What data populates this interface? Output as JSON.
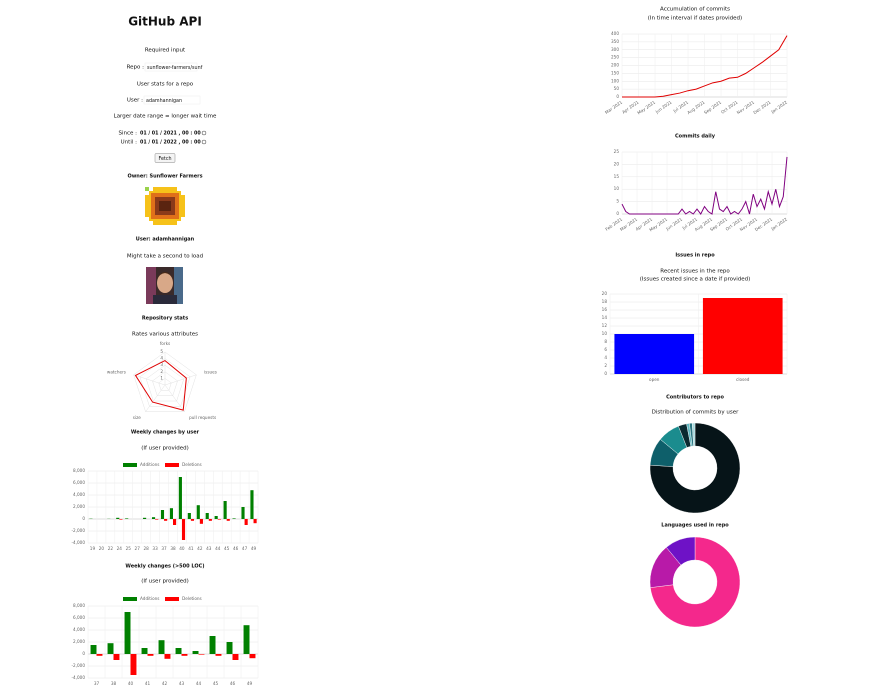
{
  "header": {
    "title": "GitHub API"
  },
  "form": {
    "required": "Required input",
    "repo_label": "Repo :",
    "repo_value": "sunflower-farmers/sunf",
    "user_stats": "User stats for a repo",
    "user_label": "User :",
    "user_value": "adamhannigan",
    "date_note": "Larger date range = longer wait time",
    "since_label": "Since :",
    "since_value": "01 / 01 / 2021 , 00 : 00",
    "until_label": "Until :",
    "until_value": "01 / 01 / 2022 , 00 : 00",
    "button": "Fetch"
  },
  "owner": {
    "heading": "Owner: Sunflower Farmers"
  },
  "user": {
    "heading": "User: adamhannigan",
    "note": "Might take a second to load"
  },
  "chart_data": [
    {
      "type": "radar",
      "title": "Repository stats",
      "subtitle": "Rates various attributes",
      "categories": [
        "forks",
        "issues",
        "pull requests",
        "size",
        "watchers"
      ],
      "values": [
        3.7,
        3.4,
        4.7,
        3.2,
        4.7
      ],
      "color": "#e00000",
      "ylim": [
        0,
        5
      ],
      "yticks": [
        1,
        2,
        3,
        4,
        5
      ]
    },
    {
      "type": "bar",
      "title": "Weekly changes by user",
      "subtitle": "(If user provided)",
      "categories": [
        "19",
        "20",
        "22",
        "24",
        "25",
        "27",
        "28",
        "33",
        "37",
        "38",
        "40",
        "41",
        "42",
        "43",
        "44",
        "45",
        "46",
        "47",
        "49"
      ],
      "series": [
        {
          "name": "Additions",
          "color": "#008000",
          "values": [
            50,
            0,
            30,
            200,
            100,
            0,
            200,
            300,
            1500,
            1800,
            7000,
            1000,
            2300,
            1000,
            500,
            3000,
            100,
            2000,
            4800
          ]
        },
        {
          "name": "Deletions",
          "color": "#ff0000",
          "values": [
            0,
            0,
            0,
            -100,
            0,
            0,
            0,
            -100,
            -300,
            -1000,
            -3500,
            -300,
            -800,
            -300,
            -100,
            -300,
            0,
            -1000,
            -700
          ]
        }
      ],
      "ylim": [
        -4000,
        8000
      ],
      "yticks": [
        {
          "value": 8000,
          "label": "8,000"
        },
        {
          "value": 6000,
          "label": "6,000"
        },
        {
          "value": 4000,
          "label": "4,000"
        },
        {
          "value": 2000,
          "label": "2,000"
        },
        0,
        {
          "value": -2000,
          "label": "-2,000"
        },
        {
          "value": -4000,
          "label": "-4,000"
        }
      ],
      "grid": true
    },
    {
      "type": "bar",
      "title": "Weekly changes (>500 LOC)",
      "subtitle": "(If user provided)",
      "categories": [
        "37",
        "38",
        "40",
        "41",
        "42",
        "43",
        "44",
        "45",
        "46",
        "49"
      ],
      "series": [
        {
          "name": "Additions",
          "color": "#008000",
          "values": [
            1500,
            1800,
            7000,
            1000,
            2300,
            1000,
            500,
            3000,
            2000,
            4800
          ]
        },
        {
          "name": "Deletions",
          "color": "#ff0000",
          "values": [
            -300,
            -1000,
            -3500,
            -300,
            -800,
            -300,
            -100,
            -300,
            -1000,
            -700
          ]
        }
      ],
      "ylim": [
        -4000,
        8000
      ],
      "yticks": [
        {
          "value": 8000,
          "label": "8,000"
        },
        {
          "value": 6000,
          "label": "6,000"
        },
        {
          "value": 4000,
          "label": "4,000"
        },
        {
          "value": 2000,
          "label": "2,000"
        },
        0,
        {
          "value": -2000,
          "label": "-2,000"
        },
        {
          "value": -4000,
          "label": "-4,000"
        }
      ],
      "grid": true
    },
    {
      "type": "line",
      "title": "Accumulation of commits",
      "subtitle": "(In time interval if dates provided)",
      "categories": [
        "Mar 2021",
        null,
        "Apr 2021",
        null,
        "May 2021",
        null,
        "Jun 2021",
        null,
        "Jul 2021",
        null,
        "Aug 2021",
        null,
        "Sep 2021",
        null,
        "Oct 2021",
        null,
        "Nov 2021",
        null,
        "Dec 2021",
        null,
        "Jan 2022"
      ],
      "values": [
        0,
        0,
        0,
        0,
        0,
        5,
        15,
        25,
        40,
        50,
        70,
        90,
        100,
        120,
        125,
        150,
        185,
        220,
        260,
        300,
        390
      ],
      "color": "#e00000",
      "ylim": [
        0,
        400
      ],
      "yticks": [
        0,
        50,
        100,
        150,
        200,
        250,
        300,
        350,
        400
      ],
      "grid": true
    },
    {
      "type": "line",
      "title": "Commits daily",
      "categories": [
        "Feb 2021",
        null,
        null,
        null,
        "Mar 2021",
        null,
        null,
        null,
        "Apr 2021",
        null,
        null,
        null,
        "May 2021",
        null,
        null,
        null,
        "Jun 2021",
        null,
        null,
        null,
        "Jul 2021",
        null,
        null,
        null,
        "Aug 2021",
        null,
        null,
        null,
        "Sep 2021",
        null,
        null,
        null,
        "Oct 2021",
        null,
        null,
        null,
        "Nov 2021",
        null,
        null,
        null,
        "Dec 2021",
        null,
        null,
        null,
        "Jan 2022"
      ],
      "values": [
        4,
        1,
        0,
        0,
        0,
        0,
        0,
        0,
        0,
        0,
        0,
        0,
        0,
        0,
        0,
        0,
        2,
        0,
        1,
        0,
        2,
        0,
        3,
        1,
        0,
        9,
        2,
        1,
        3,
        0,
        1,
        0,
        2,
        5,
        0,
        8,
        3,
        6,
        2,
        9,
        4,
        10,
        3,
        7,
        23
      ],
      "color": "#800080",
      "ylim": [
        0,
        25
      ],
      "yticks": [
        0,
        5,
        10,
        15,
        20,
        25
      ],
      "grid": true
    },
    {
      "type": "bar",
      "title": "Issues in repo",
      "subtitle": "Recent issues in the repo",
      "note": "(Issues created since a date if provided)",
      "categories": [
        "open",
        "closed"
      ],
      "values": [
        10,
        19
      ],
      "colors": [
        "#0000ff",
        "#ff0000"
      ],
      "ylim": [
        0,
        20
      ],
      "yticks": [
        0,
        2,
        4,
        6,
        8,
        10,
        12,
        14,
        16,
        18,
        20
      ],
      "grid": true
    },
    {
      "type": "doughnut",
      "title": "Contributors to repo",
      "subtitle": "Distribution of commits by user",
      "values": [
        76,
        10,
        8,
        3,
        1,
        1,
        1
      ],
      "colors": [
        "#061418",
        "#0e5f6a",
        "#1b8c8e",
        "#0a2a30",
        "#5fb8c0",
        "#2a7580",
        "#a8d8dc"
      ]
    },
    {
      "type": "doughnut",
      "title": "Languages used in repo",
      "values": [
        73,
        16,
        11
      ],
      "colors": [
        "#f4288c",
        "#b81aa8",
        "#6e12c6"
      ]
    }
  ]
}
